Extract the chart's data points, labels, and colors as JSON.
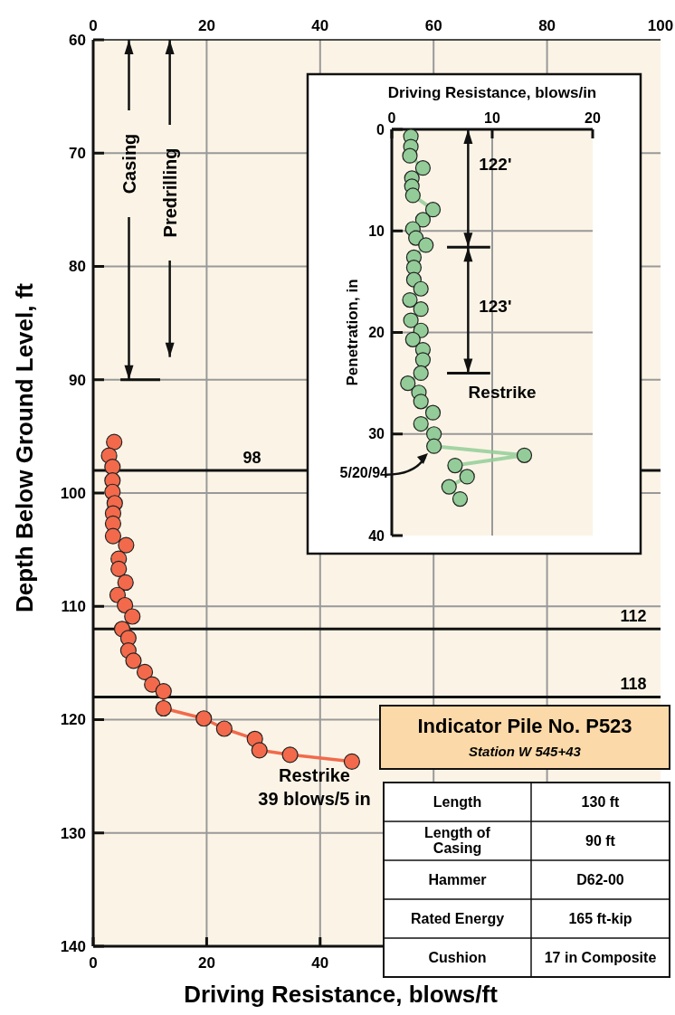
{
  "chart_data": [
    {
      "type": "line",
      "xlabel": "Driving Resistance, blows/ft",
      "ylabel": "Depth Below Ground Level, ft",
      "xlim": [
        0,
        100
      ],
      "xticks": [
        0,
        20,
        40
      ],
      "x2lim": [
        0,
        100
      ],
      "x2ticks": [
        0,
        20,
        40,
        60,
        80,
        100
      ],
      "ylim": [
        140,
        60
      ],
      "yticks": [
        60,
        70,
        80,
        90,
        100,
        110,
        120,
        130,
        140
      ],
      "grid": true,
      "marker": "circle",
      "series": [
        {
          "color": "#f26a4b",
          "x": [
            3.7,
            2.8,
            3.4,
            3.4,
            3.4,
            3.8,
            3.5,
            3.5,
            3.5,
            5.8,
            4.5,
            4.5,
            5.7,
            4.3,
            5.6,
            6.9,
            5.1,
            6.2,
            6.2,
            7.1,
            9.1,
            10.4,
            12.4,
            12.4,
            19.5,
            23.1,
            28.5,
            29.3,
            34.7,
            45.6
          ],
          "values": [
            95.5,
            96.7,
            97.7,
            98.9,
            99.9,
            100.9,
            101.8,
            102.7,
            103.8,
            104.6,
            105.8,
            106.7,
            107.9,
            109,
            109.9,
            110.9,
            112,
            112.8,
            113.9,
            114.8,
            115.8,
            116.9,
            117.5,
            119,
            119.9,
            120.8,
            121.7,
            122.7,
            123.1,
            123.7
          ]
        }
      ],
      "ref_lines": [
        {
          "axis": "y",
          "value": 98,
          "label": "98"
        },
        {
          "axis": "y",
          "value": 112,
          "label": "112"
        },
        {
          "axis": "y",
          "value": 118,
          "label": "118"
        }
      ],
      "annotations": [
        "Casing",
        "Predrilling",
        "Restrike\n39 blows/5 in"
      ]
    },
    {
      "type": "line",
      "xlabel": "Driving Resistance, blows/in",
      "ylabel": "Penetration, in",
      "xlim": [
        0,
        20
      ],
      "xticks": [
        0,
        10,
        20
      ],
      "ylim": [
        40,
        0
      ],
      "yticks": [
        0,
        10,
        20,
        30,
        40
      ],
      "grid": true,
      "marker": "circle",
      "series": [
        {
          "color": "#93cc98",
          "x": [
            1.9,
            1.9,
            1.8,
            3.1,
            2.0,
            2.0,
            2.1,
            4.1,
            3.1,
            2.1,
            2.4,
            3.4,
            2.2,
            2.2,
            2.2,
            2.9,
            1.8,
            2.9,
            1.9,
            2.9,
            2.1,
            3.1,
            3.1,
            2.9,
            1.6,
            2.7,
            2.9,
            4.1,
            2.9,
            4.2,
            4.2,
            13.2,
            6.3,
            7.5,
            5.7,
            6.8
          ],
          "values": [
            0.7,
            1.7,
            2.6,
            3.8,
            4.8,
            5.6,
            6.5,
            7.9,
            8.9,
            9.8,
            10.7,
            11.4,
            12.6,
            13.6,
            14.8,
            15.7,
            16.8,
            17.7,
            18.8,
            19.8,
            20.7,
            21.7,
            22.7,
            24,
            25,
            25.9,
            26.8,
            27.9,
            29,
            30,
            31.2,
            32.1,
            33.1,
            34.2,
            35.2,
            36.4
          ]
        }
      ],
      "annotations": [
        "122'",
        "123'",
        "Restrike",
        "5/20/94"
      ]
    },
    {
      "type": "other",
      "title": "Indicator Pile No. P523",
      "subtitle": "Station W 545+43",
      "annotations": [
        "Length",
        "130 ft",
        "Length of\nCasing",
        "90 ft",
        "Hammer",
        "D62-00",
        "Rated Energy",
        "165 ft-kip",
        "Cushion",
        "17 in Composite"
      ]
    }
  ]
}
